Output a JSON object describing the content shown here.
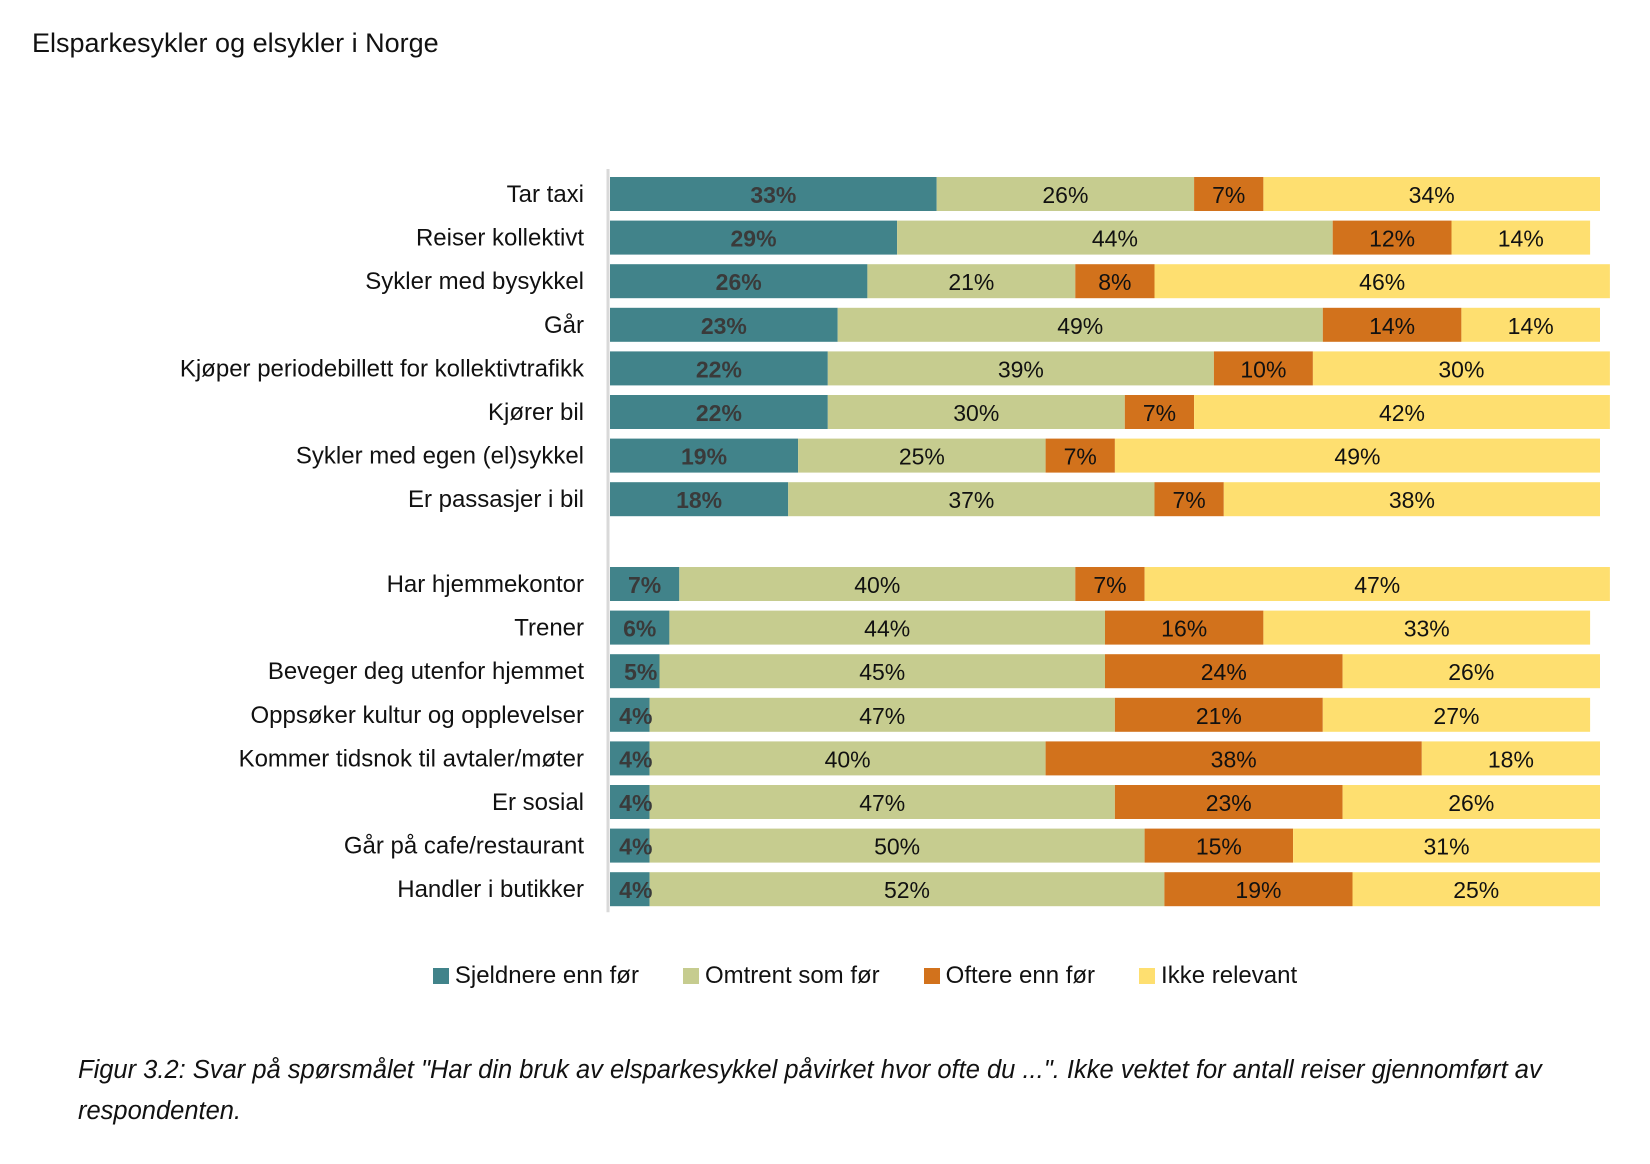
{
  "header": {
    "title": "Elsparkesykler og elsykler i Norge"
  },
  "legend": [
    {
      "label": "Sjeldnere enn før",
      "color": "#41838a"
    },
    {
      "label": "Omtrent som før",
      "color": "#c6cc8f"
    },
    {
      "label": "Oftere enn før",
      "color": "#d2721c"
    },
    {
      "label": "Ikke relevant",
      "color": "#fedf70"
    }
  ],
  "caption": "Figur 3.2: Svar på spørsmålet \"Har din bruk av elsparkesykkel påvirket hvor ofte du ...\". Ikke vektet for antall reiser gjennomført av respondenten.",
  "chart_data": {
    "type": "bar",
    "orientation": "horizontal",
    "stacked": true,
    "normalized": "100%",
    "title": "",
    "xlabel": "",
    "ylabel": "",
    "xlim": [
      0,
      100
    ],
    "grid": false,
    "legend_position": "bottom",
    "groups": [
      {
        "categories": [
          "Tar taxi",
          "Reiser kollektivt",
          "Sykler med bysykkel",
          "Går",
          "Kjøper periodebillett for kollektivtrafikk",
          "Kjører bil",
          "Sykler med egen (el)sykkel",
          "Er passasjer i bil"
        ]
      },
      {
        "categories": [
          "Har hjemmekontor",
          "Trener",
          "Beveger deg utenfor hjemmet",
          "Oppsøker kultur og opplevelser",
          "Kommer tidsnok til avtaler/møter",
          "Er sosial",
          "Går på cafe/restaurant",
          "Handler i butikker"
        ]
      }
    ],
    "categories": [
      "Tar taxi",
      "Reiser kollektivt",
      "Sykler med bysykkel",
      "Går",
      "Kjøper periodebillett for kollektivtrafikk",
      "Kjører bil",
      "Sykler med egen (el)sykkel",
      "Er passasjer i bil",
      "Har hjemmekontor",
      "Trener",
      "Beveger deg utenfor hjemmet",
      "Oppsøker kultur og opplevelser",
      "Kommer tidsnok til avtaler/møter",
      "Er sosial",
      "Går på cafe/restaurant",
      "Handler i butikker"
    ],
    "series": [
      {
        "name": "Sjeldnere enn før",
        "color": "#41838a",
        "values": [
          33,
          29,
          26,
          23,
          22,
          22,
          19,
          18,
          7,
          6,
          5,
          4,
          4,
          4,
          4,
          4
        ]
      },
      {
        "name": "Omtrent som før",
        "color": "#c6cc8f",
        "values": [
          26,
          44,
          21,
          49,
          39,
          30,
          25,
          37,
          40,
          44,
          45,
          47,
          40,
          47,
          50,
          52
        ]
      },
      {
        "name": "Oftere enn før",
        "color": "#d2721c",
        "values": [
          7,
          12,
          8,
          14,
          10,
          7,
          7,
          7,
          7,
          16,
          24,
          21,
          38,
          23,
          15,
          19
        ]
      },
      {
        "name": "Ikke relevant",
        "color": "#fedf70",
        "values": [
          34,
          14,
          46,
          14,
          30,
          42,
          49,
          38,
          47,
          33,
          26,
          27,
          18,
          26,
          31,
          25
        ]
      }
    ],
    "value_suffix": "%"
  }
}
